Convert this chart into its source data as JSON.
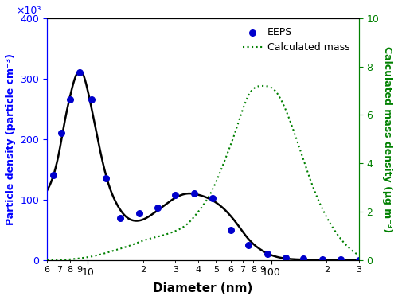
{
  "title": "",
  "xlabel": "Diameter (nm)",
  "ylabel_left": "Particle density (particle cm⁻³)",
  "ylabel_right": "Calculated mass density (µg m⁻³)",
  "xlim_log": [
    6,
    300
  ],
  "ylim_left": [
    0,
    400000
  ],
  "ylim_right": [
    0,
    10
  ],
  "left_color": "blue",
  "right_color": "green",
  "line_color": "black",
  "scatter_color": "#0000cc",
  "dot_color": "green",
  "eeps_dots_x": [
    6.5,
    7.2,
    8.0,
    9.0,
    10.5,
    12.5,
    15.0,
    19.0,
    24.0,
    30.0,
    38.0,
    48.0,
    60.0,
    75.0,
    95.0,
    120.0,
    150.0,
    190.0,
    240.0,
    300.0
  ],
  "eeps_dots_y": [
    140000,
    210000,
    265000,
    310000,
    265000,
    135000,
    70000,
    78000,
    87000,
    108000,
    110000,
    103000,
    50000,
    25000,
    10000,
    4000,
    2000,
    1000,
    500,
    200
  ],
  "black_line_x": [
    6.0,
    6.5,
    7.0,
    7.5,
    8.0,
    8.5,
    9.0,
    9.5,
    10.0,
    11.0,
    12.0,
    13.0,
    14.0,
    16.0,
    18.0,
    20.0,
    23.0,
    26.0,
    30.0,
    35.0,
    40.0,
    47.0,
    55.0,
    65.0,
    75.0,
    90.0,
    105.0,
    120.0,
    140.0,
    160.0,
    180.0,
    210.0,
    250.0,
    300.0
  ],
  "black_line_y": [
    115000,
    140000,
    180000,
    230000,
    270000,
    300000,
    313000,
    305000,
    280000,
    220000,
    165000,
    125000,
    100000,
    73000,
    65000,
    67000,
    78000,
    90000,
    103000,
    110000,
    108000,
    100000,
    85000,
    60000,
    35000,
    15000,
    6000,
    2500,
    1000,
    500,
    200,
    100,
    30,
    5
  ],
  "calc_mass_x": [
    6.0,
    7.0,
    8.0,
    9.0,
    10.0,
    12.0,
    14.0,
    17.0,
    20.0,
    25.0,
    30.0,
    35.0,
    40.0,
    47.0,
    55.0,
    65.0,
    75.0,
    90.0,
    105.0,
    120.0,
    140.0,
    160.0,
    180.0,
    210.0,
    250.0,
    300.0
  ],
  "calc_mass_y": [
    0.0,
    0.01,
    0.03,
    0.07,
    0.12,
    0.25,
    0.4,
    0.6,
    0.8,
    1.0,
    1.2,
    1.5,
    2.0,
    2.8,
    4.0,
    5.5,
    6.8,
    7.2,
    7.0,
    6.2,
    4.8,
    3.5,
    2.5,
    1.5,
    0.7,
    0.2
  ],
  "legend_eeps": "EEPS",
  "legend_calc": "Calculated mass",
  "yticks_left": [
    0,
    100000,
    200000,
    300000,
    400000
  ],
  "ytick_labels_left": [
    "0",
    "100",
    "200",
    "300",
    "400"
  ],
  "left_exp": "×10³",
  "yticks_right": [
    0,
    2,
    4,
    6,
    8,
    10
  ],
  "bg_color": "white"
}
